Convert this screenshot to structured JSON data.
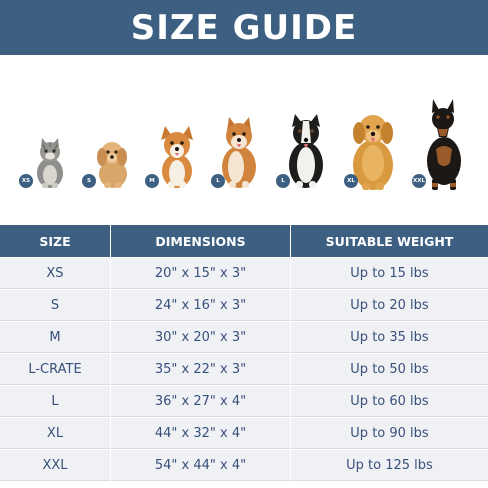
{
  "title": "SIZE GUIDE",
  "colors": {
    "header_bg": "#3d5f82",
    "row_bg": "#f0f1f4",
    "text": "#38507a"
  },
  "pets": [
    {
      "animal": "cat-icon",
      "badge": "XS"
    },
    {
      "animal": "poodle-dog-icon",
      "badge": "S"
    },
    {
      "animal": "corgi-dog-icon",
      "badge": "M"
    },
    {
      "animal": "shiba-dog-icon",
      "badge": "L"
    },
    {
      "animal": "border-collie-dog-icon",
      "badge": "L"
    },
    {
      "animal": "golden-retriever-dog-icon",
      "badge": "XL"
    },
    {
      "animal": "doberman-dog-icon",
      "badge": "XXL"
    }
  ],
  "table": {
    "headers": [
      "SIZE",
      "DIMENSIONS",
      "SUITABLE WEIGHT"
    ],
    "rows": [
      [
        "XS",
        "20\" x 15\" x 3\"",
        "Up to 15 lbs"
      ],
      [
        "S",
        "24\" x 16\" x 3\"",
        "Up to 20 lbs"
      ],
      [
        "M",
        "30\" x 20\" x 3\"",
        "Up to 35 lbs"
      ],
      [
        "L-CRATE",
        "35\" x 22\" x 3\"",
        "Up to 50 lbs"
      ],
      [
        "L",
        "36\" x 27\" x 4\"",
        "Up to 60 lbs"
      ],
      [
        "XL",
        "44\" x 32\" x 4\"",
        "Up to 90 lbs"
      ],
      [
        "XXL",
        "54\" x 44\" x 4\"",
        "Up to 125 lbs"
      ]
    ]
  }
}
